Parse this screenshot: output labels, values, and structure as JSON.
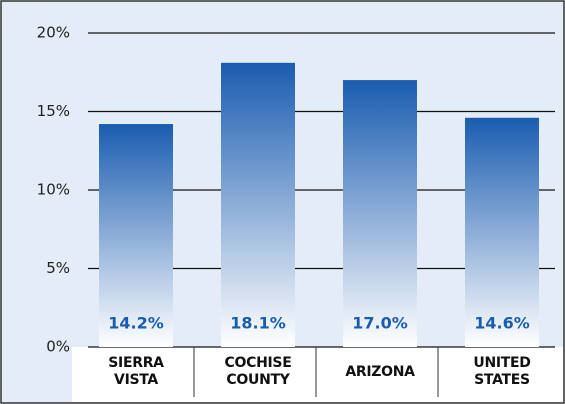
{
  "chart_data": {
    "type": "bar",
    "categories": [
      "SIERRA VISTA",
      "COCHISE COUNTY",
      "ARIZONA",
      "UNITED STATES"
    ],
    "values": [
      14.2,
      18.1,
      17.0,
      14.6
    ],
    "value_labels": [
      "14.2%",
      "18.1%",
      "17.0%",
      "14.6%"
    ],
    "color": "#1a5cb0",
    "ylim": [
      0,
      20
    ],
    "yticks": [
      {
        "value": 0,
        "label": "0%"
      },
      {
        "value": 5,
        "label": "5%"
      },
      {
        "value": 10,
        "label": "10%"
      },
      {
        "value": 15,
        "label": "15%"
      },
      {
        "value": 20,
        "label": "20%"
      }
    ],
    "grid": true
  }
}
